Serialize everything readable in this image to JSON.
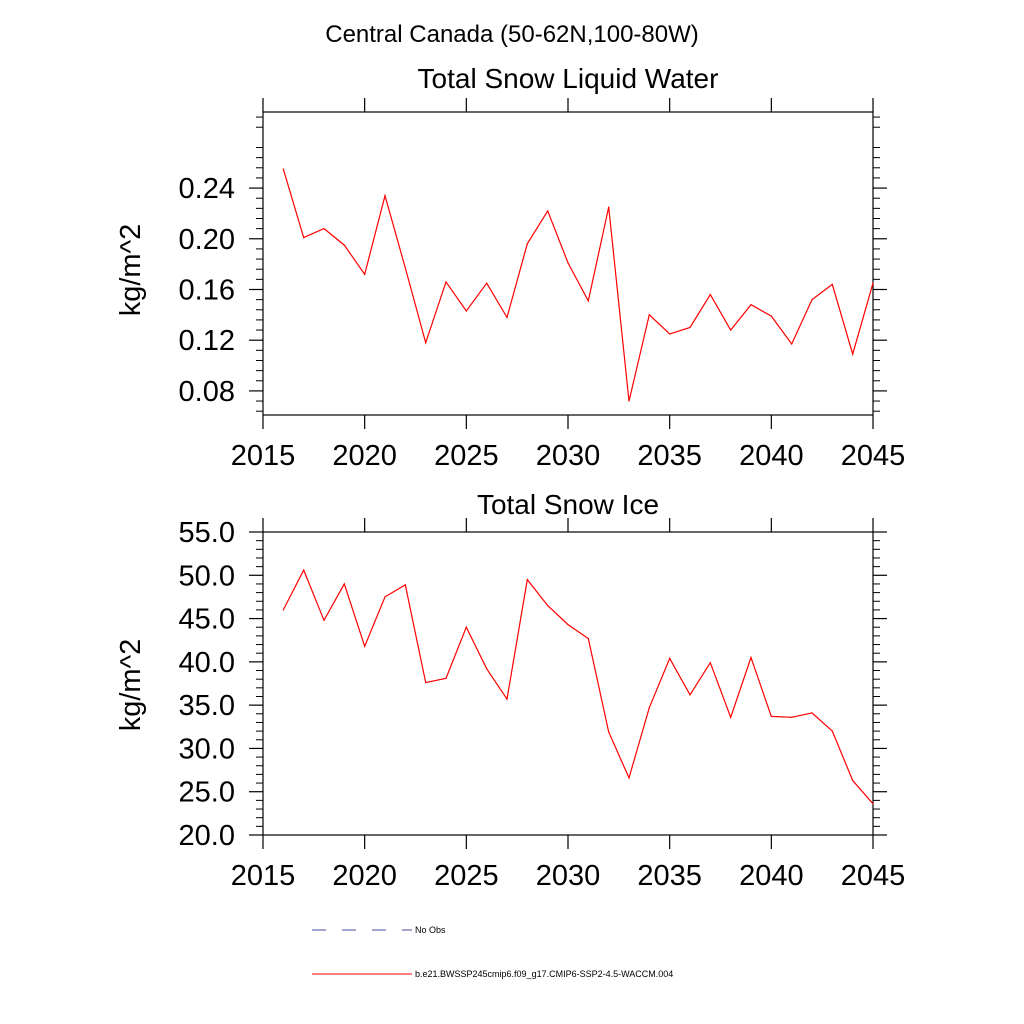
{
  "figure": {
    "supertitle": "Central Canada (50-62N,100-80W)"
  },
  "chart_data": [
    {
      "type": "line",
      "title": "Total Snow Liquid Water",
      "xlabel": "",
      "ylabel": "kg/m^2",
      "xlim": [
        2015,
        2045
      ],
      "ylim": [
        0.061,
        0.3
      ],
      "x_ticks": [
        2015,
        2020,
        2025,
        2030,
        2035,
        2040,
        2045
      ],
      "x_tick_labels": [
        "2015",
        "2020",
        "2025",
        "2030",
        "2035",
        "2040",
        "2045"
      ],
      "y_ticks": [
        0.08,
        0.12,
        0.16,
        0.2,
        0.24
      ],
      "y_tick_labels": [
        "0.08",
        "0.12",
        "0.16",
        "0.20",
        "0.24"
      ],
      "grid": false,
      "x": [
        2016,
        2017,
        2018,
        2019,
        2020,
        2021,
        2022,
        2023,
        2024,
        2025,
        2026,
        2027,
        2028,
        2029,
        2030,
        2031,
        2032,
        2033,
        2034,
        2035,
        2036,
        2037,
        2038,
        2039,
        2040,
        2041,
        2042,
        2043,
        2044,
        2045
      ],
      "series": [
        {
          "name": "b.e21.BWSSP245cmip6.f09_g17.CMIP6-SSP2-4.5-WACCM.004",
          "color": "#ff0000",
          "values": [
            0.255,
            0.201,
            0.208,
            0.195,
            0.172,
            0.234,
            0.177,
            0.118,
            0.166,
            0.143,
            0.165,
            0.138,
            0.196,
            0.222,
            0.181,
            0.151,
            0.225,
            0.072,
            0.14,
            0.125,
            0.13,
            0.156,
            0.128,
            0.148,
            0.139,
            0.117,
            0.152,
            0.164,
            0.109,
            0.165
          ]
        }
      ]
    },
    {
      "type": "line",
      "title": "Total Snow Ice",
      "xlabel": "",
      "ylabel": "kg/m^2",
      "xlim": [
        2015,
        2045
      ],
      "ylim": [
        20.0,
        55.0
      ],
      "x_ticks": [
        2015,
        2020,
        2025,
        2030,
        2035,
        2040,
        2045
      ],
      "x_tick_labels": [
        "2015",
        "2020",
        "2025",
        "2030",
        "2035",
        "2040",
        "2045"
      ],
      "y_ticks": [
        20,
        25,
        30,
        35,
        40,
        45,
        50,
        55
      ],
      "y_tick_labels": [
        "20.0",
        "25.0",
        "30.0",
        "35.0",
        "40.0",
        "45.0",
        "50.0",
        "55.0"
      ],
      "grid": false,
      "x": [
        2016,
        2017,
        2018,
        2019,
        2020,
        2021,
        2022,
        2023,
        2024,
        2025,
        2026,
        2027,
        2028,
        2029,
        2030,
        2031,
        2032,
        2033,
        2034,
        2035,
        2036,
        2037,
        2038,
        2039,
        2040,
        2041,
        2042,
        2043,
        2044,
        2045
      ],
      "series": [
        {
          "name": "b.e21.BWSSP245cmip6.f09_g17.CMIP6-SSP2-4.5-WACCM.004",
          "color": "#ff0000",
          "values": [
            46.0,
            50.6,
            44.8,
            49.0,
            41.8,
            47.5,
            48.9,
            37.6,
            38.1,
            44.0,
            39.2,
            35.7,
            49.5,
            46.5,
            44.3,
            42.7,
            31.9,
            26.6,
            34.7,
            40.4,
            36.2,
            39.9,
            33.6,
            40.5,
            33.7,
            33.6,
            34.1,
            32.0,
            26.3,
            23.6
          ]
        }
      ]
    }
  ],
  "legend": {
    "placement": "bottom",
    "entries": [
      {
        "label": "No Obs",
        "color": "#4a4aa0",
        "style": "dashed"
      },
      {
        "label": "b.e21.BWSSP245cmip6.f09_g17.CMIP6-SSP2-4.5-WACCM.004",
        "color": "#ff0000",
        "style": "solid"
      }
    ]
  }
}
